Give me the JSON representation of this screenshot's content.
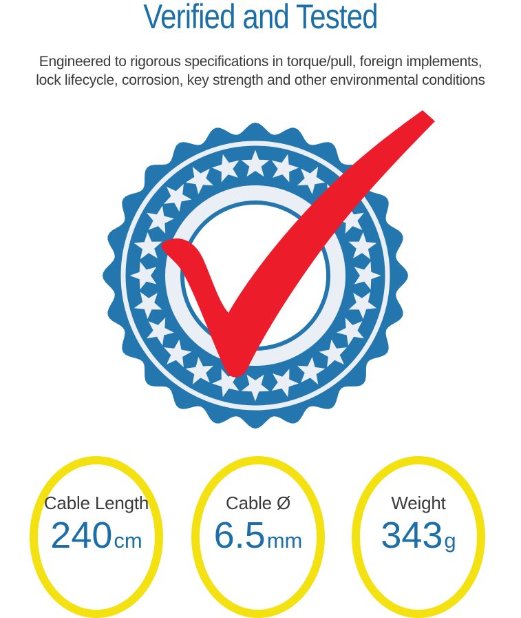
{
  "header": {
    "title": "Verified and Tested",
    "subtitle_line1": "Engineered to rigorous specifications in torque/pull, foreign implements,",
    "subtitle_line2": "lock lifecycle, corrosion, key strength and other environmental conditions"
  },
  "colors": {
    "title_blue": "#1C6FA6",
    "text_dark": "#3A3A3A",
    "value_blue": "#1B6EA7",
    "spec_ring_yellow": "#F4E111",
    "seal_blue": "#2476AE",
    "seal_ring_white": "#E9EFF5",
    "seal_center_white": "#FFFFFF",
    "check_red": "#ED1C2B"
  },
  "badge": {
    "icon": "verified-seal-checkmark-icon",
    "star_count": 24
  },
  "specs": [
    {
      "label": "Cable Length",
      "value": "240",
      "unit": "cm"
    },
    {
      "label": "Cable Ø",
      "value": "6.5",
      "unit": "mm"
    },
    {
      "label": "Weight",
      "value": "343",
      "unit": "g"
    }
  ]
}
